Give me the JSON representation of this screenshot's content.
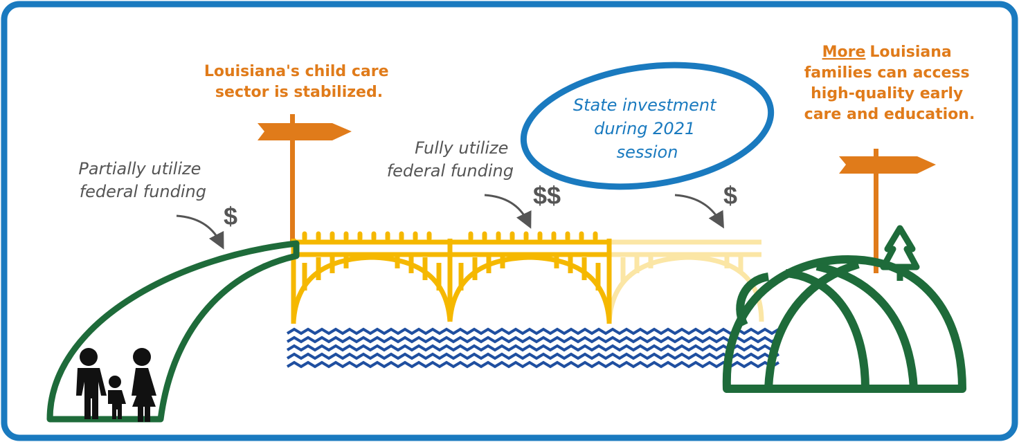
{
  "signpost": {
    "lines": [
      "Louisiana's child care",
      "sector is stabilized."
    ]
  },
  "stage_1": {
    "lines": [
      "Partially utilize",
      "federal funding"
    ],
    "funding": "$"
  },
  "stage_2": {
    "lines": [
      "Fully utilize",
      "federal funding"
    ],
    "funding": "$$"
  },
  "stage_3": {
    "lines": [
      "State investment",
      "during 2021",
      "session"
    ],
    "funding": "$"
  },
  "goal": {
    "emphasis": "More",
    "lines": [
      "Louisiana",
      "families can access",
      "high-quality early",
      "care and education."
    ]
  }
}
